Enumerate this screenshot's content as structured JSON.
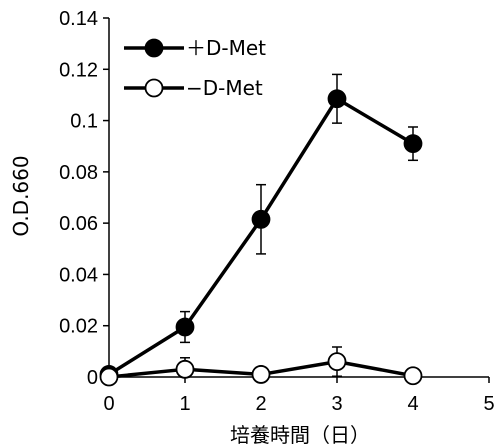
{
  "chart_data": {
    "type": "line",
    "title": "",
    "xlabel": "培養時間（日）",
    "ylabel": "O.D.660",
    "xlim": [
      0,
      5
    ],
    "ylim": [
      0,
      0.14
    ],
    "xticks": [
      "0",
      "1",
      "2",
      "3",
      "4",
      "5"
    ],
    "yticks": [
      "0",
      "0.02",
      "0.04",
      "0.06",
      "0.08",
      "0.1",
      "0.12",
      "0.14"
    ],
    "grid": false,
    "legend_position": "top-left",
    "series": [
      {
        "name": "＋D-Met",
        "marker": "filled-circle",
        "color": "#000000",
        "x": [
          0,
          1,
          2,
          3,
          4
        ],
        "y": [
          0.001,
          0.0195,
          0.0615,
          0.1085,
          0.091
        ],
        "error": [
          0,
          0.006,
          0.0135,
          0.0095,
          0.0065
        ]
      },
      {
        "name": "−D-Met",
        "marker": "open-circle",
        "color": "#000000",
        "x": [
          0,
          1,
          2,
          3,
          4
        ],
        "y": [
          0,
          0.003,
          0.001,
          0.006,
          0.0005
        ],
        "error": [
          0,
          0.0045,
          0,
          0.0057,
          0
        ]
      }
    ]
  }
}
